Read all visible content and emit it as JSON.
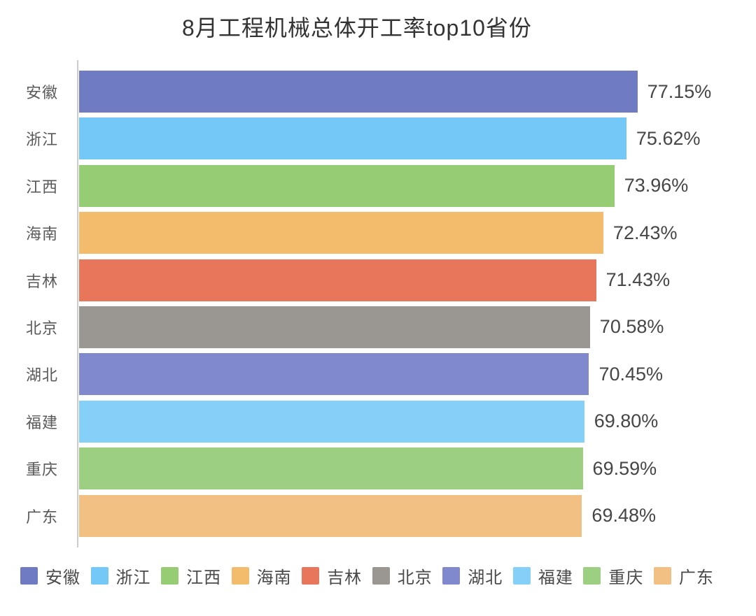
{
  "title": "8月工程机械总体开工率top10省份",
  "chart_data": {
    "type": "bar",
    "orientation": "horizontal",
    "title": "8月工程机械总体开工率top10省份",
    "categories": [
      "安徽",
      "浙江",
      "江西",
      "海南",
      "吉林",
      "北京",
      "湖北",
      "福建",
      "重庆",
      "广东"
    ],
    "values": [
      77.15,
      75.62,
      73.96,
      72.43,
      71.43,
      70.58,
      70.45,
      69.8,
      69.59,
      69.48
    ],
    "value_labels": [
      "77.15%",
      "75.62%",
      "73.96%",
      "72.43%",
      "71.43%",
      "70.58%",
      "70.45%",
      "69.80%",
      "69.59%",
      "69.48%"
    ],
    "unit": "%",
    "xlim": [
      0,
      80
    ],
    "grid": false,
    "bar_colors": [
      "#6F7BC3",
      "#73C8F8",
      "#95CC74",
      "#F3BC6C",
      "#E8765A",
      "#9A9793",
      "#8189CE",
      "#85D0F9",
      "#9DCF83",
      "#F3C083"
    ],
    "legend": [
      "安徽",
      "浙江",
      "江西",
      "海南",
      "吉林",
      "北京",
      "湖北",
      "福建",
      "重庆",
      "广东"
    ],
    "legend_position": "bottom"
  },
  "style_colors": {
    "background": "#ffffff",
    "axis_line": "#cbcbcb",
    "title_text": "#333333",
    "category_text": "#595959",
    "value_text": "#464646",
    "legend_text": "#4a4a4a"
  }
}
